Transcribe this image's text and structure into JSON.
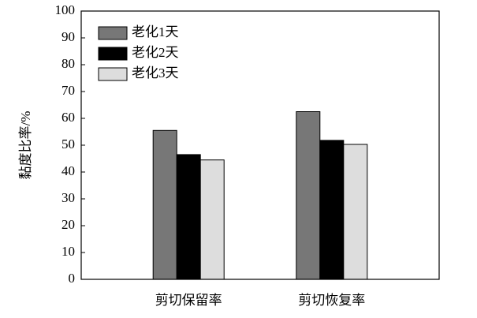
{
  "chart_data": {
    "type": "bar",
    "y_label": "黏度比率/%",
    "categories": [
      "剪切保留率",
      "剪切恢复率"
    ],
    "series": [
      {
        "name": "老化1天",
        "color": "#777777",
        "values": [
          55.5,
          62.5
        ]
      },
      {
        "name": "老化2天",
        "color": "#000000",
        "values": [
          46.5,
          51.8
        ]
      },
      {
        "name": "老化3天",
        "color": "#dddddd",
        "values": [
          44.5,
          50.3
        ]
      }
    ],
    "ylim": [
      0,
      100
    ],
    "yticks": [
      0,
      10,
      20,
      30,
      40,
      50,
      60,
      70,
      80,
      90,
      100
    ],
    "legend": "upper left"
  }
}
